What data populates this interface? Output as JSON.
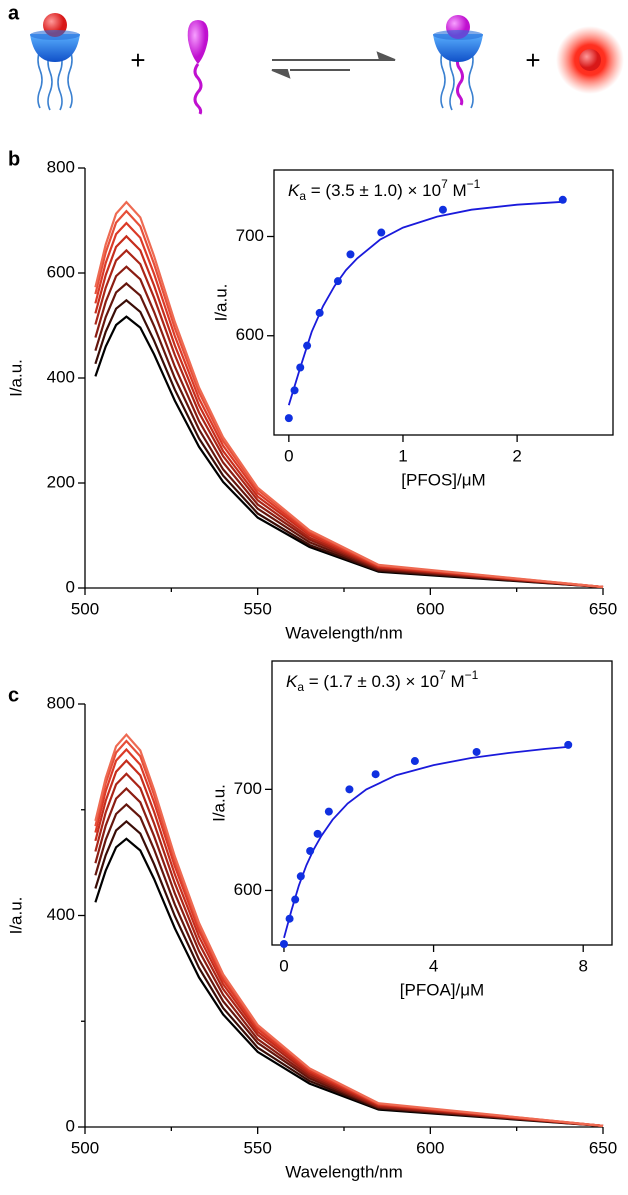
{
  "scheme": {
    "panel": "a",
    "plus": [
      "+",
      "+"
    ]
  },
  "chart_data": [
    {
      "type": "line",
      "panel": "b",
      "xlabel": "Wavelength/nm",
      "ylabel": "I/a.u.",
      "xlim": [
        500,
        650
      ],
      "ylim": [
        0,
        800
      ],
      "xticks": [
        500,
        550,
        600,
        650
      ],
      "xminor": [
        525,
        575,
        625
      ],
      "yticks": [
        0,
        200,
        400,
        600,
        800
      ],
      "x": [
        503,
        506,
        509,
        512,
        516,
        520,
        526,
        533,
        540,
        550,
        565,
        585,
        650
      ],
      "series": [
        {
          "color": "#000000",
          "values": [
            403,
            460,
            501,
            517,
            496,
            445,
            357,
            269,
            202,
            134,
            78,
            31,
            2
          ]
        },
        {
          "color": "#3a0d07",
          "values": [
            427,
            488,
            532,
            548,
            526,
            471,
            378,
            285,
            214,
            142,
            82,
            33,
            2
          ]
        },
        {
          "color": "#65160d",
          "values": [
            452,
            516,
            563,
            580,
            557,
            499,
            400,
            302,
            226,
            151,
            87,
            35,
            2
          ]
        },
        {
          "color": "#8b1d12",
          "values": [
            477,
            545,
            594,
            612,
            588,
            526,
            422,
            318,
            239,
            159,
            92,
            37,
            2
          ]
        },
        {
          "color": "#ab2517",
          "values": [
            502,
            572,
            624,
            643,
            617,
            553,
            444,
            334,
            251,
            167,
            96,
            39,
            2
          ]
        },
        {
          "color": "#c62d1c",
          "values": [
            523,
            596,
            650,
            670,
            643,
            576,
            462,
            348,
            261,
            174,
            101,
            40,
            2
          ]
        },
        {
          "color": "#db3a27",
          "values": [
            542,
            619,
            674,
            695,
            667,
            598,
            480,
            361,
            271,
            181,
            104,
            42,
            2
          ]
        },
        {
          "color": "#e64f39",
          "values": [
            560,
            639,
            696,
            718,
            689,
            617,
            495,
            373,
            280,
            187,
            108,
            43,
            2
          ]
        },
        {
          "color": "#ee6a52",
          "values": [
            573,
            654,
            713,
            735,
            706,
            632,
            507,
            382,
            287,
            191,
            110,
            44,
            2
          ]
        }
      ]
    },
    {
      "type": "scatter",
      "xlabel": "[PFOS]/μM",
      "ylabel": "I/a.u.",
      "annotation": {
        "k": "K",
        "sub": "a",
        "main": " = (3.5 ± 1.0) × 10",
        "exp": "7",
        "unit": " M",
        "unit_exp": "−1"
      },
      "xlim": [
        -0.13,
        2.84
      ],
      "ylim": [
        500,
        767
      ],
      "xticks": [
        0,
        1,
        2
      ],
      "yticks": [
        600,
        700
      ],
      "points": {
        "color": "#1030e0",
        "x": [
          0,
          0.05,
          0.1,
          0.16,
          0.27,
          0.43,
          0.54,
          0.81,
          1.35,
          2.4
        ],
        "values": [
          517,
          545,
          568,
          590,
          623,
          655,
          682,
          704,
          727,
          737
        ]
      },
      "fit": {
        "color": "#1a1adb",
        "x": [
          0,
          0.1,
          0.2,
          0.3,
          0.4,
          0.5,
          0.6,
          0.8,
          1.0,
          1.3,
          1.6,
          2.0,
          2.4
        ],
        "values": [
          530,
          568,
          604,
          630,
          650,
          666,
          678,
          697,
          709,
          720,
          727,
          732,
          735
        ]
      }
    },
    {
      "type": "line",
      "panel": "c",
      "xlabel": "Wavelength/nm",
      "ylabel": "I/a.u.",
      "xlim": [
        500,
        650
      ],
      "ylim": [
        0,
        800
      ],
      "xticks": [
        500,
        550,
        600,
        650
      ],
      "xminor": [
        525,
        575,
        625
      ],
      "yticks": [
        0,
        400,
        800
      ],
      "yminor": [
        200,
        600
      ],
      "x": [
        503,
        506,
        509,
        512,
        516,
        520,
        526,
        533,
        540,
        550,
        565,
        585,
        650
      ],
      "series": [
        {
          "color": "#000000",
          "values": [
            425,
            485,
            529,
            545,
            523,
            469,
            376,
            283,
            213,
            142,
            82,
            33,
            2
          ]
        },
        {
          "color": "#3a0d07",
          "values": [
            451,
            514,
            561,
            578,
            555,
            497,
            399,
            301,
            225,
            150,
            87,
            35,
            2
          ]
        },
        {
          "color": "#65160d",
          "values": [
            476,
            543,
            592,
            610,
            586,
            525,
            421,
            317,
            238,
            159,
            92,
            37,
            2
          ]
        },
        {
          "color": "#8b1d12",
          "values": [
            499,
            570,
            621,
            640,
            614,
            550,
            442,
            333,
            250,
            166,
            96,
            38,
            2
          ]
        },
        {
          "color": "#ab2517",
          "values": [
            521,
            595,
            648,
            668,
            641,
            574,
            461,
            347,
            261,
            174,
            100,
            40,
            2
          ]
        },
        {
          "color": "#c62d1c",
          "values": [
            541,
            617,
            672,
            693,
            665,
            596,
            478,
            360,
            270,
            180,
            104,
            42,
            2
          ]
        },
        {
          "color": "#db3a27",
          "values": [
            557,
            635,
            693,
            714,
            685,
            614,
            493,
            371,
            278,
            186,
            107,
            43,
            2
          ]
        },
        {
          "color": "#e64f39",
          "values": [
            569,
            650,
            708,
            730,
            701,
            628,
            504,
            380,
            285,
            190,
            110,
            44,
            2
          ]
        },
        {
          "color": "#ee6a52",
          "values": [
            579,
            660,
            720,
            742,
            712,
            638,
            512,
            386,
            289,
            193,
            111,
            45,
            2
          ]
        }
      ]
    },
    {
      "type": "scatter",
      "xlabel": "[PFOA]/μM",
      "ylabel": "I/a.u.",
      "annotation": {
        "k": "K",
        "sub": "a",
        "main": " = (1.7 ± 0.3) × 10",
        "exp": "7",
        "unit": " M",
        "unit_exp": "−1"
      },
      "xlim": [
        -0.32,
        8.77
      ],
      "ylim": [
        546,
        827
      ],
      "xticks": [
        0,
        4,
        8
      ],
      "yticks": [
        600,
        700
      ],
      "points": {
        "color": "#1030e0",
        "x": [
          0,
          0.15,
          0.3,
          0.45,
          0.7,
          0.9,
          1.2,
          1.75,
          2.45,
          3.5,
          5.15,
          7.6
        ],
        "values": [
          547,
          572,
          591,
          614,
          639,
          656,
          678,
          700,
          715,
          728,
          737,
          744
        ]
      },
      "fit": {
        "color": "#1a1adb",
        "x": [
          0,
          0.2,
          0.4,
          0.6,
          0.8,
          1.0,
          1.3,
          1.7,
          2.2,
          3,
          4,
          5,
          6,
          7,
          7.6
        ],
        "values": [
          553,
          580,
          605,
          625,
          641,
          654,
          670,
          686,
          700,
          714,
          724,
          731,
          736,
          740,
          742
        ]
      }
    }
  ]
}
